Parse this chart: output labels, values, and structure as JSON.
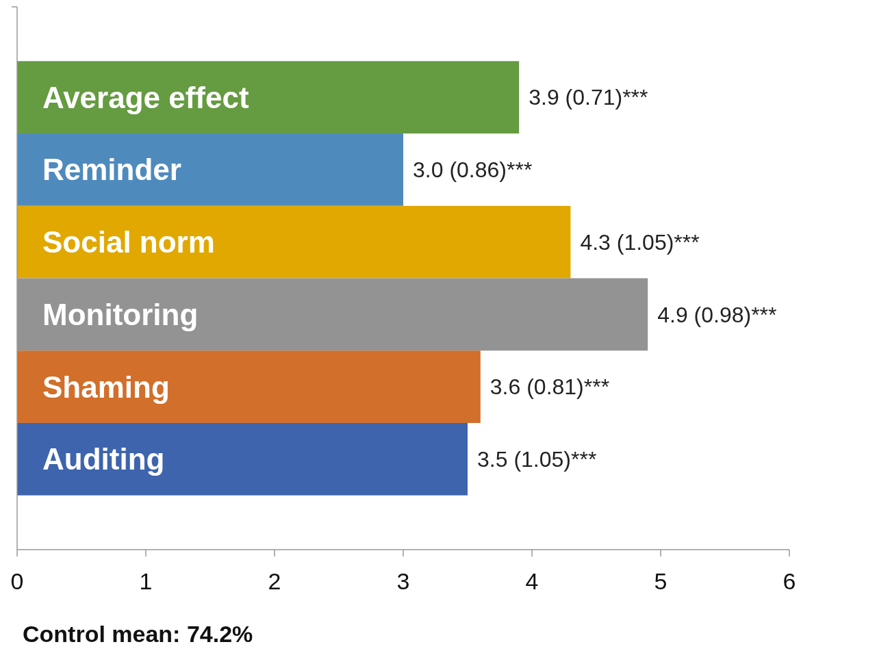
{
  "chart_data": {
    "type": "bar",
    "orientation": "horizontal",
    "categories": [
      "Average effect",
      "Reminder",
      "Social norm",
      "Monitoring",
      "Shaming",
      "Auditing"
    ],
    "values": [
      3.9,
      3.0,
      4.3,
      4.9,
      3.6,
      3.5
    ],
    "colors": [
      "#659b41",
      "#4f8abd",
      "#e0a800",
      "#939393",
      "#d16f2b",
      "#3d64ad"
    ],
    "value_labels": [
      "3.9  (0.71)***",
      "3.0  (0.86)***",
      "4.3  (1.05)***",
      "4.9  (0.98)***",
      "3.6  (0.81)***",
      "3.5  (1.05)***"
    ],
    "xlim": [
      0,
      6
    ],
    "xticks": [
      0,
      1,
      2,
      3,
      4,
      5,
      6
    ],
    "grid": false,
    "annotations": [
      "Control mean: 74.2%"
    ]
  }
}
